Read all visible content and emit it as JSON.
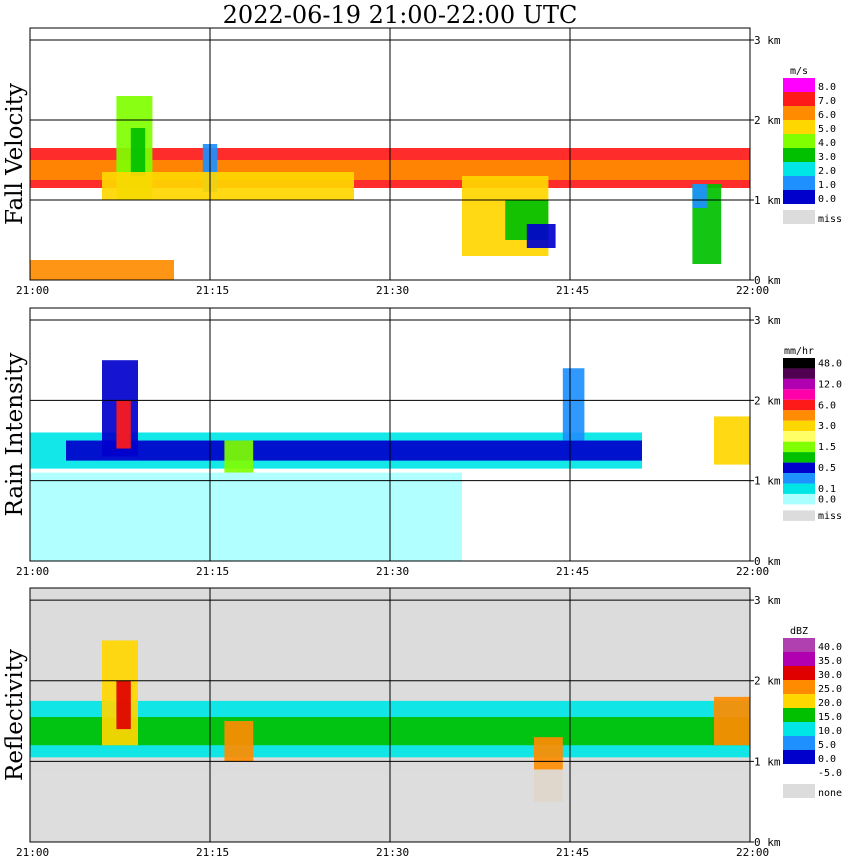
{
  "title": "2022-06-19   21:00-22:00 UTC",
  "chart_data": [
    {
      "type": "heatmap",
      "name": "Fall Velocity",
      "units": "m/s",
      "xlabel": "",
      "ylabel": "Fall Velocity",
      "x_ticks": [
        "21:00",
        "21:15",
        "21:30",
        "21:45",
        "22:00"
      ],
      "y_ticks": [
        "0 km",
        "1 km",
        "2 km",
        "3 km"
      ],
      "ylim": [
        0,
        3.0
      ],
      "legend": [
        {
          "label": "8.0",
          "color": "#ff00ff"
        },
        {
          "label": "7.0",
          "color": "#ff1a1a"
        },
        {
          "label": "6.0",
          "color": "#ff8c00"
        },
        {
          "label": "5.0",
          "color": "#ffd700"
        },
        {
          "label": "4.0",
          "color": "#7fff00"
        },
        {
          "label": "3.0",
          "color": "#00c000"
        },
        {
          "label": "2.0",
          "color": "#00e5e5"
        },
        {
          "label": "1.0",
          "color": "#1e90ff"
        },
        {
          "label": "0.0",
          "color": "#0000cd"
        },
        {
          "label": "miss",
          "color": "#dcdcdc"
        }
      ],
      "features": [
        {
          "t0": 21.0,
          "t1": 22.0,
          "z0": 1.15,
          "z1": 1.65,
          "c": 1
        },
        {
          "t0": 21.0,
          "t1": 22.0,
          "z0": 1.25,
          "z1": 1.5,
          "c": 2
        },
        {
          "t0": 21.12,
          "t1": 21.17,
          "z0": 1.0,
          "z1": 2.3,
          "c": 4
        },
        {
          "t0": 21.14,
          "t1": 21.16,
          "z0": 1.3,
          "z1": 1.9,
          "c": 5
        },
        {
          "t0": 21.24,
          "t1": 21.26,
          "z0": 1.1,
          "z1": 1.7,
          "c": 7
        },
        {
          "t0": 21.1,
          "t1": 21.45,
          "z0": 1.0,
          "z1": 1.35,
          "c": 3
        },
        {
          "t0": 21.6,
          "t1": 21.72,
          "z0": 0.3,
          "z1": 1.3,
          "c": 3
        },
        {
          "t0": 21.66,
          "t1": 21.72,
          "z0": 0.5,
          "z1": 1.0,
          "c": 5
        },
        {
          "t0": 21.69,
          "t1": 21.73,
          "z0": 0.4,
          "z1": 0.7,
          "c": 8
        },
        {
          "t0": 21.92,
          "t1": 21.96,
          "z0": 0.2,
          "z1": 1.2,
          "c": 5
        },
        {
          "t0": 21.92,
          "t1": 21.94,
          "z0": 0.9,
          "z1": 1.2,
          "c": 7
        },
        {
          "t0": 21.0,
          "t1": 21.2,
          "z0": 0.0,
          "z1": 0.25,
          "c": 2
        }
      ]
    },
    {
      "type": "heatmap",
      "name": "Rain Intensity",
      "units": "mm/hr",
      "xlabel": "",
      "ylabel": "Rain Intensity",
      "x_ticks": [
        "21:00",
        "21:15",
        "21:30",
        "21:45",
        "22:00"
      ],
      "y_ticks": [
        "0 km",
        "1 km",
        "2 km",
        "3 km"
      ],
      "ylim": [
        0,
        3.0
      ],
      "legend": [
        {
          "label": "48.0",
          "color": "#000000"
        },
        {
          "label": "",
          "color": "#500050"
        },
        {
          "label": "12.0",
          "color": "#b000b0"
        },
        {
          "label": "",
          "color": "#ff00aa"
        },
        {
          "label": "6.0",
          "color": "#ff1a1a"
        },
        {
          "label": "",
          "color": "#ff8c00"
        },
        {
          "label": "3.0",
          "color": "#ffd700"
        },
        {
          "label": "",
          "color": "#ffff66"
        },
        {
          "label": "1.5",
          "color": "#7fff00"
        },
        {
          "label": "",
          "color": "#00c000"
        },
        {
          "label": "0.5",
          "color": "#0000cd"
        },
        {
          "label": "",
          "color": "#1e90ff"
        },
        {
          "label": "0.1",
          "color": "#00e5e5"
        },
        {
          "label": "0.0",
          "color": "#aaffff"
        },
        {
          "label": "miss",
          "color": "#dcdcdc"
        }
      ],
      "features": [
        {
          "t0": 21.0,
          "t1": 21.85,
          "z0": 1.15,
          "z1": 1.6,
          "c": 12
        },
        {
          "t0": 21.05,
          "t1": 21.85,
          "z0": 1.25,
          "z1": 1.5,
          "c": 10
        },
        {
          "t0": 21.1,
          "t1": 21.15,
          "z0": 1.3,
          "z1": 2.5,
          "c": 10
        },
        {
          "t0": 21.12,
          "t1": 21.14,
          "z0": 1.4,
          "z1": 2.0,
          "c": 4
        },
        {
          "t0": 21.27,
          "t1": 21.31,
          "z0": 1.1,
          "z1": 1.5,
          "c": 8
        },
        {
          "t0": 21.95,
          "t1": 22.0,
          "z0": 1.2,
          "z1": 1.8,
          "c": 6
        },
        {
          "t0": 21.0,
          "t1": 21.6,
          "z0": 0.0,
          "z1": 1.1,
          "c": 13
        },
        {
          "t0": 21.74,
          "t1": 21.77,
          "z0": 1.5,
          "z1": 2.4,
          "c": 11
        }
      ]
    },
    {
      "type": "heatmap",
      "name": "Reflectivity",
      "units": "dBZ",
      "xlabel": "",
      "ylabel": "Reflectivity",
      "x_ticks": [
        "21:00",
        "21:15",
        "21:30",
        "21:45",
        "22:00"
      ],
      "y_ticks": [
        "0 km",
        "1 km",
        "2 km",
        "3 km"
      ],
      "ylim": [
        0,
        3.0
      ],
      "legend": [
        {
          "label": "40.0",
          "color": "#b040b0"
        },
        {
          "label": "35.0",
          "color": "#b000b0"
        },
        {
          "label": "30.0",
          "color": "#e00000"
        },
        {
          "label": "25.0",
          "color": "#ff8c00"
        },
        {
          "label": "20.0",
          "color": "#ffd700"
        },
        {
          "label": "15.0",
          "color": "#00c000"
        },
        {
          "label": "10.0",
          "color": "#00e5e5"
        },
        {
          "label": "5.0",
          "color": "#1e90ff"
        },
        {
          "label": "0.0",
          "color": "#0000cd"
        },
        {
          "label": "-5.0",
          "color": "#ffffff"
        },
        {
          "label": "none",
          "color": "#dcdcdc"
        }
      ],
      "features": [
        {
          "t0": 21.0,
          "t1": 22.0,
          "z0": 1.05,
          "z1": 1.75,
          "c": 6
        },
        {
          "t0": 21.0,
          "t1": 22.0,
          "z0": 1.2,
          "z1": 1.55,
          "c": 5
        },
        {
          "t0": 21.1,
          "t1": 21.15,
          "z0": 1.2,
          "z1": 2.5,
          "c": 4
        },
        {
          "t0": 21.12,
          "t1": 21.14,
          "z0": 1.4,
          "z1": 2.0,
          "c": 2
        },
        {
          "t0": 21.27,
          "t1": 21.31,
          "z0": 1.0,
          "z1": 1.5,
          "c": 3
        },
        {
          "t0": 21.7,
          "t1": 21.74,
          "z0": 0.5,
          "z1": 1.3,
          "c": 3
        },
        {
          "t0": 21.95,
          "t1": 22.0,
          "z0": 1.2,
          "z1": 1.8,
          "c": 3
        },
        {
          "t0": 21.0,
          "t1": 22.0,
          "z0": 0.0,
          "z1": 0.9,
          "c": 10
        }
      ]
    }
  ]
}
